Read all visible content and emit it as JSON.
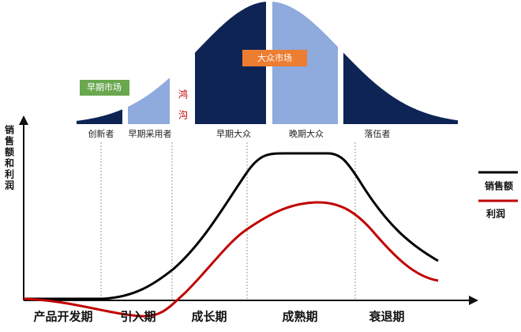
{
  "adoption": {
    "early_market": "早期市场",
    "chasm": "鸿沟",
    "mass_market": "大众市场",
    "segments": [
      "创新者",
      "早期采用者",
      "早期大众",
      "晚期大众",
      "落伍者"
    ]
  },
  "axis_label": "销售额和利润",
  "legend": [
    "销售额",
    "利润"
  ],
  "phases": [
    "产品开发期",
    "引入期",
    "成长期",
    "成熟期",
    "衰退期"
  ]
}
